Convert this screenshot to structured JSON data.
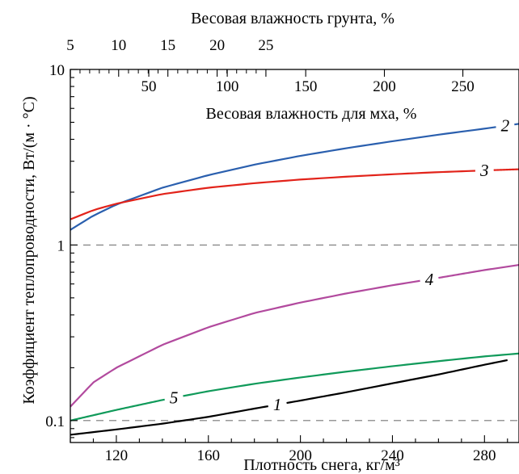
{
  "chart_data": {
    "type": "line",
    "title": "",
    "xlabel": "Плотность снега, кг/м³",
    "ylabel": "Коэффициент теплопроводности, Вт/(м · °С)",
    "top_xlabel": "Весовая влажность грунта, %",
    "inner_xlabel": "Весовая влажность для мха, %",
    "xlim": [
      100,
      295
    ],
    "ylim": [
      0.075,
      10
    ],
    "yscale": "log",
    "x_ticks": [
      120,
      160,
      200,
      240,
      280
    ],
    "y_ticks": [
      {
        "value": 0.1,
        "label": "0.1"
      },
      {
        "value": 1,
        "label": "1"
      },
      {
        "value": 10,
        "label": "10"
      }
    ],
    "top_ticks": {
      "labels": [
        "5",
        "10",
        "15",
        "20",
        "25"
      ],
      "x_positions": [
        100,
        121,
        142.4,
        163.8,
        185
      ]
    },
    "inner_ticks": {
      "labels": [
        "50",
        "100",
        "150",
        "200",
        "250"
      ],
      "x_positions": [
        100,
        134.1,
        168.2,
        202.3,
        236.5,
        270.6
      ]
    },
    "reference_lines": [
      0.1,
      1
    ],
    "series": [
      {
        "name": "1",
        "color": "#000000",
        "points": [
          [
            100,
            0.083
          ],
          [
            120,
            0.089
          ],
          [
            140,
            0.096
          ],
          [
            160,
            0.105
          ],
          [
            180,
            0.117
          ],
          [
            200,
            0.13
          ],
          [
            220,
            0.145
          ],
          [
            240,
            0.163
          ],
          [
            260,
            0.183
          ],
          [
            280,
            0.208
          ],
          [
            290,
            0.221
          ]
        ]
      },
      {
        "name": "2",
        "color": "#2a5fae",
        "points": [
          [
            100,
            1.22
          ],
          [
            110,
            1.47
          ],
          [
            120,
            1.7
          ],
          [
            140,
            2.12
          ],
          [
            160,
            2.5
          ],
          [
            180,
            2.87
          ],
          [
            200,
            3.22
          ],
          [
            220,
            3.56
          ],
          [
            240,
            3.9
          ],
          [
            260,
            4.25
          ],
          [
            280,
            4.6
          ],
          [
            295,
            4.9
          ]
        ]
      },
      {
        "name": "3",
        "color": "#e2231a",
        "points": [
          [
            100,
            1.4
          ],
          [
            110,
            1.58
          ],
          [
            120,
            1.72
          ],
          [
            140,
            1.95
          ],
          [
            160,
            2.12
          ],
          [
            180,
            2.25
          ],
          [
            200,
            2.36
          ],
          [
            220,
            2.45
          ],
          [
            240,
            2.53
          ],
          [
            260,
            2.6
          ],
          [
            280,
            2.66
          ],
          [
            295,
            2.7
          ]
        ]
      },
      {
        "name": "4",
        "color": "#b24a9e",
        "points": [
          [
            100,
            0.12
          ],
          [
            110,
            0.165
          ],
          [
            120,
            0.2
          ],
          [
            140,
            0.27
          ],
          [
            160,
            0.34
          ],
          [
            180,
            0.41
          ],
          [
            200,
            0.47
          ],
          [
            220,
            0.53
          ],
          [
            240,
            0.59
          ],
          [
            260,
            0.65
          ],
          [
            280,
            0.72
          ],
          [
            295,
            0.77
          ]
        ]
      },
      {
        "name": "5",
        "color": "#109a5a",
        "points": [
          [
            100,
            0.1
          ],
          [
            120,
            0.115
          ],
          [
            140,
            0.131
          ],
          [
            160,
            0.147
          ],
          [
            180,
            0.162
          ],
          [
            200,
            0.176
          ],
          [
            220,
            0.19
          ],
          [
            240,
            0.204
          ],
          [
            260,
            0.218
          ],
          [
            280,
            0.232
          ],
          [
            295,
            0.241
          ]
        ]
      }
    ],
    "series_label_x": [
      190,
      289,
      280,
      256,
      145
    ],
    "grid": false,
    "legend": "none"
  }
}
